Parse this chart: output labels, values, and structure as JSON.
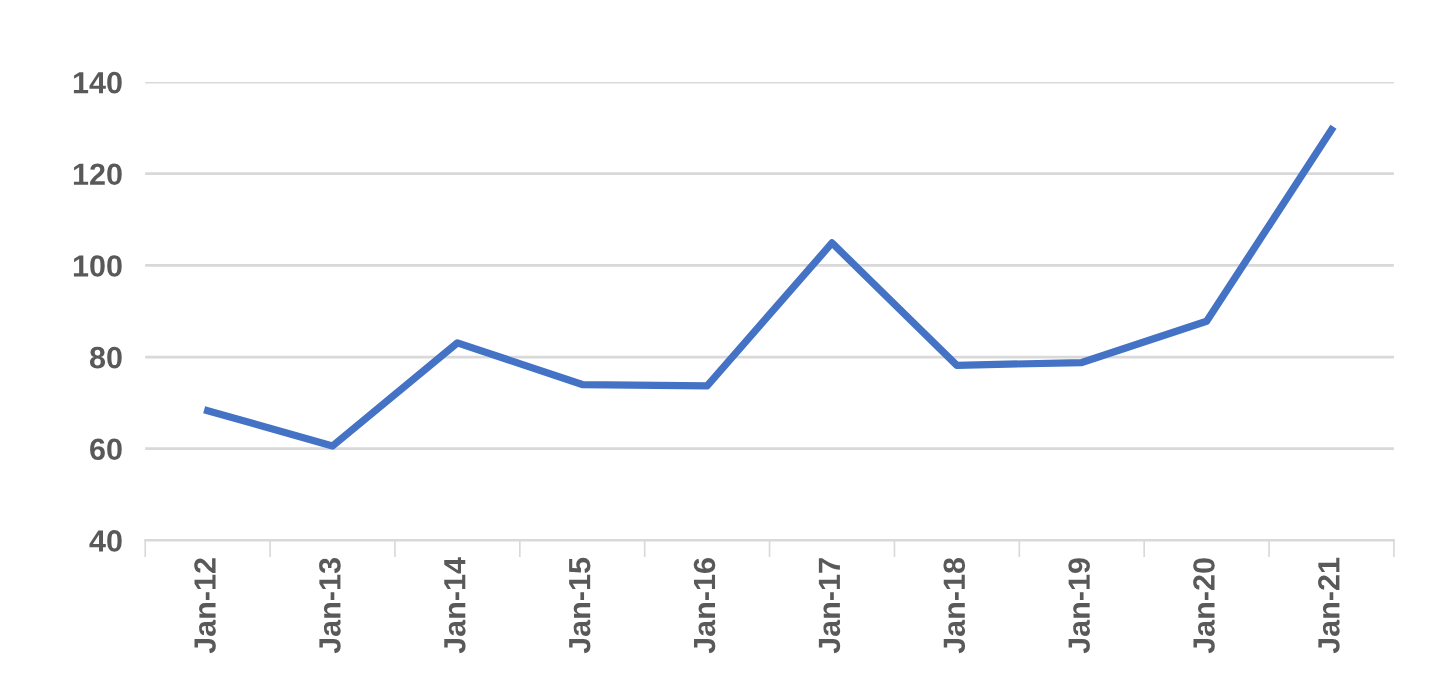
{
  "chart_data": {
    "type": "line",
    "categories": [
      "Jan-12",
      "Jan-13",
      "Jan-14",
      "Jan-15",
      "Jan-16",
      "Jan-17",
      "Jan-18",
      "Jan-19",
      "Jan-20",
      "Jan-21"
    ],
    "series": [
      {
        "color": "#4472c4",
        "values": [
          68.3,
          60.6,
          83.1,
          74,
          73.7,
          104.9,
          78.2,
          78.8,
          87.8,
          129.6
        ]
      }
    ],
    "ylim": [
      40,
      140
    ],
    "yticks": [
      40,
      60,
      80,
      100,
      120,
      140
    ],
    "grid": "y",
    "marker": "none",
    "line_style": "solid"
  }
}
